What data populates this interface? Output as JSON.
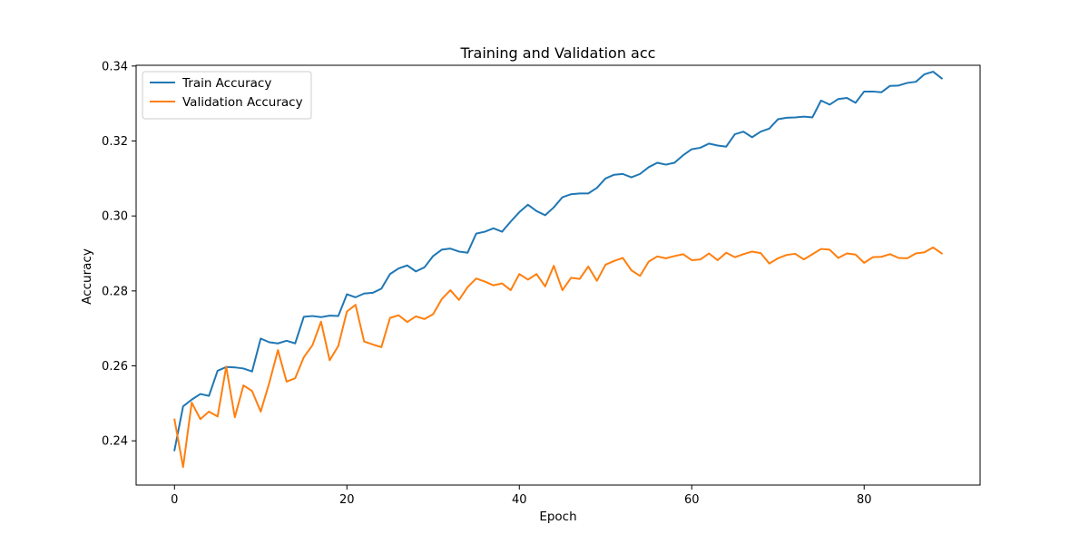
{
  "chart_data": {
    "type": "line",
    "title": "Training and Validation acc",
    "xlabel": "Epoch",
    "ylabel": "Accuracy",
    "xlim": [
      -4.45,
      93.45
    ],
    "ylim": [
      0.2282,
      0.3402
    ],
    "xticks": [
      0,
      20,
      40,
      60,
      80
    ],
    "xtick_labels": [
      "0",
      "20",
      "40",
      "60",
      "80"
    ],
    "yticks": [
      0.24,
      0.26,
      0.28,
      0.3,
      0.32,
      0.34
    ],
    "ytick_labels": [
      "0.24",
      "0.26",
      "0.28",
      "0.30",
      "0.32",
      "0.34"
    ],
    "grid": false,
    "legend_position": "upper-left",
    "x": [
      0,
      1,
      2,
      3,
      4,
      5,
      6,
      7,
      8,
      9,
      10,
      11,
      12,
      13,
      14,
      15,
      16,
      17,
      18,
      19,
      20,
      21,
      22,
      23,
      24,
      25,
      26,
      27,
      28,
      29,
      30,
      31,
      32,
      33,
      34,
      35,
      36,
      37,
      38,
      39,
      40,
      41,
      42,
      43,
      44,
      45,
      46,
      47,
      48,
      49,
      50,
      51,
      52,
      53,
      54,
      55,
      56,
      57,
      58,
      59,
      60,
      61,
      62,
      63,
      64,
      65,
      66,
      67,
      68,
      69,
      70,
      71,
      72,
      73,
      74,
      75,
      76,
      77,
      78,
      79,
      80,
      81,
      82,
      83,
      84,
      85,
      86,
      87,
      88,
      89
    ],
    "series": [
      {
        "name": "Train Accuracy",
        "color": "#1f77b4",
        "values": [
          0.2375,
          0.2492,
          0.251,
          0.2525,
          0.252,
          0.2587,
          0.2597,
          0.2596,
          0.2593,
          0.2585,
          0.2673,
          0.2663,
          0.266,
          0.2667,
          0.266,
          0.2731,
          0.2733,
          0.273,
          0.2734,
          0.2733,
          0.2791,
          0.2783,
          0.2793,
          0.2795,
          0.2806,
          0.2845,
          0.286,
          0.2868,
          0.2852,
          0.2863,
          0.2893,
          0.291,
          0.2913,
          0.2905,
          0.2902,
          0.2953,
          0.2958,
          0.2967,
          0.2958,
          0.2985,
          0.301,
          0.303,
          0.3013,
          0.3002,
          0.3023,
          0.305,
          0.3058,
          0.306,
          0.306,
          0.3075,
          0.31,
          0.311,
          0.3112,
          0.3103,
          0.3112,
          0.313,
          0.3142,
          0.3137,
          0.3142,
          0.3162,
          0.3178,
          0.3182,
          0.3193,
          0.3188,
          0.3185,
          0.3218,
          0.3225,
          0.321,
          0.3225,
          0.3233,
          0.3258,
          0.3262,
          0.3263,
          0.3265,
          0.3263,
          0.3308,
          0.3297,
          0.3312,
          0.3315,
          0.3302,
          0.3332,
          0.3332,
          0.333,
          0.3347,
          0.3348,
          0.3355,
          0.3358,
          0.3378,
          0.3385,
          0.3367
        ]
      },
      {
        "name": "Validation Accuracy",
        "color": "#ff7f0e",
        "values": [
          0.2457,
          0.233,
          0.2502,
          0.2458,
          0.2478,
          0.2465,
          0.2598,
          0.2463,
          0.2548,
          0.2533,
          0.2478,
          0.2555,
          0.2642,
          0.2558,
          0.2567,
          0.2623,
          0.2655,
          0.2718,
          0.2615,
          0.2653,
          0.2745,
          0.2763,
          0.2665,
          0.2657,
          0.265,
          0.2728,
          0.2735,
          0.2717,
          0.2732,
          0.2725,
          0.2738,
          0.2778,
          0.2802,
          0.2776,
          0.281,
          0.2833,
          0.2825,
          0.2815,
          0.282,
          0.2802,
          0.2845,
          0.283,
          0.2845,
          0.2812,
          0.2867,
          0.2802,
          0.2835,
          0.2832,
          0.2865,
          0.2827,
          0.287,
          0.288,
          0.2888,
          0.2855,
          0.284,
          0.2878,
          0.2892,
          0.2887,
          0.2893,
          0.2898,
          0.2882,
          0.2884,
          0.29,
          0.2882,
          0.2902,
          0.289,
          0.2898,
          0.2905,
          0.2901,
          0.2873,
          0.2887,
          0.2896,
          0.2899,
          0.2884,
          0.2898,
          0.2912,
          0.291,
          0.2888,
          0.29,
          0.2897,
          0.2875,
          0.289,
          0.2891,
          0.2898,
          0.2888,
          0.2887,
          0.29,
          0.2903,
          0.2916,
          0.29
        ]
      }
    ]
  }
}
